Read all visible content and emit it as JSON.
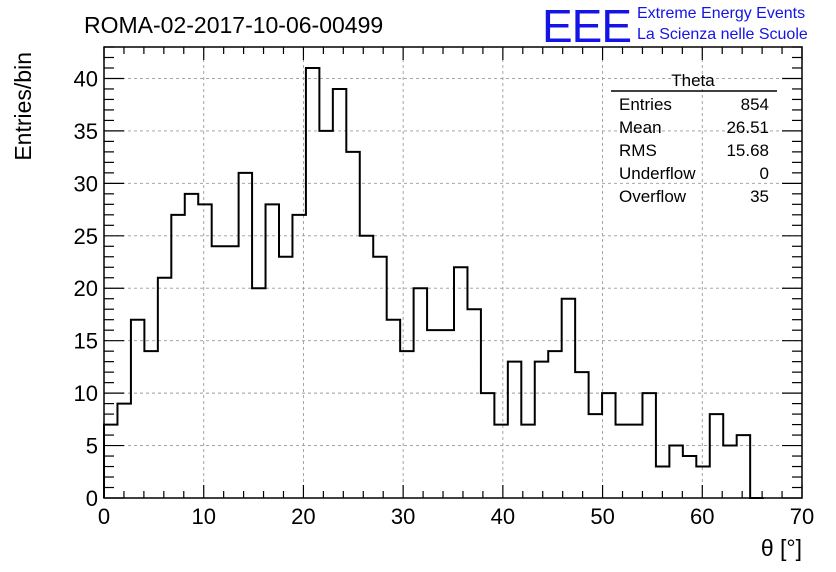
{
  "title": "ROMA-02-2017-10-06-00499",
  "logo": {
    "mark": "EEE",
    "line1": "Extreme Energy Events",
    "line2": "La Scienza nelle Scuole",
    "color": "#1414e6"
  },
  "stats": {
    "name": "Theta",
    "rows": [
      {
        "label": "Entries",
        "value": "854"
      },
      {
        "label": "Mean",
        "value": "26.51"
      },
      {
        "label": "RMS",
        "value": "15.68"
      },
      {
        "label": "Underflow",
        "value": "0"
      },
      {
        "label": "Overflow",
        "value": "35"
      }
    ]
  },
  "chart_data": {
    "type": "bar",
    "style": "step-histogram",
    "xlabel": "θ [°]",
    "ylabel": "Entries/bin",
    "xlim": [
      0,
      70
    ],
    "ylim": [
      0,
      43
    ],
    "xticks": [
      0,
      10,
      20,
      30,
      40,
      50,
      60,
      70
    ],
    "yticks": [
      0,
      5,
      10,
      15,
      20,
      25,
      30,
      35,
      40
    ],
    "grid": true,
    "bin_edges_start": 0,
    "bin_width": 1.35,
    "values": [
      7,
      9,
      17,
      14,
      21,
      27,
      29,
      28,
      24,
      24,
      31,
      20,
      28,
      23,
      27,
      41,
      35,
      39,
      33,
      25,
      23,
      17,
      14,
      20,
      16,
      16,
      22,
      18,
      10,
      7,
      13,
      7,
      13,
      14,
      19,
      12,
      8,
      10,
      7,
      7,
      10,
      3,
      5,
      4,
      3,
      8,
      5,
      6,
      0
    ]
  }
}
